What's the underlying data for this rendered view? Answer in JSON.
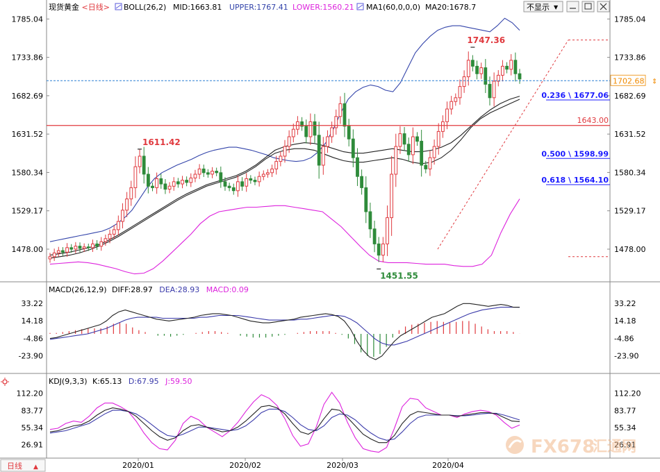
{
  "header": {
    "instrument": "现货黄金",
    "period": "<日线>",
    "boll": "BOLL(26,2)",
    "mid": "MID:1663.81",
    "upper": "UPPER:1767.41",
    "lower": "LOWER:1560.21",
    "ma": "MA1(60,0,0,0)",
    "ma20": "MA20:1678.7",
    "hide_button": "不显示",
    "hide_arrow": "▼"
  },
  "macd_header": {
    "title": "MACD(26,12,9)",
    "diff": "DIFF:28.97",
    "dea": "DEA:28.93",
    "macd": "MACD:0.09"
  },
  "kdj_header": {
    "title": "KDJ(9,3,3)",
    "k": "K:65.13",
    "d": "D:67.95",
    "j": "J:59.50"
  },
  "bottom": {
    "period_tab": "日线",
    "period_arrow": "▲"
  },
  "watermark": {
    "brand": "FX678",
    "cn": "汇通网"
  },
  "colors": {
    "up": "#e0393e",
    "down": "#2e8b3a",
    "boll_upper": "#3344aa",
    "boll_lower": "#dd22dd",
    "ma": "#222222",
    "resistance": "#e0393e",
    "current_price_line": "#2a7fd4",
    "fib_label": "#1a1aff",
    "dea": "#3a3aaa",
    "diff": "#222222"
  },
  "chart_data": [
    {
      "type": "candlestick",
      "name": "main",
      "x_labels": [
        "2020/01",
        "2020/02",
        "2020/03",
        "2020/04"
      ],
      "y_ticks": [
        1785.04,
        1733.86,
        1682.69,
        1631.52,
        1580.34,
        1529.17,
        1478.0
      ],
      "ylim": [
        1440,
        1790
      ],
      "current_price": 1702.68,
      "resistance": 1643.0,
      "resistance_label": "1643.00",
      "annotations": [
        {
          "text": "1611.42",
          "value": 1611.42,
          "color": "#e0393e"
        },
        {
          "text": "1747.36",
          "value": 1747.36,
          "color": "#e0393e"
        },
        {
          "text": "1451.55",
          "value": 1451.55,
          "color": "#2e8b3a"
        }
      ],
      "fib_levels": [
        {
          "label": "0.236 \\ 1677.06",
          "value": 1677.06
        },
        {
          "label": "0.500 \\ 1598.99",
          "value": 1598.99
        },
        {
          "label": "0.618 \\ 1564.10",
          "value": 1564.1
        }
      ],
      "closes": [
        1468,
        1473,
        1476,
        1474,
        1480,
        1478,
        1482,
        1479,
        1481,
        1480,
        1485,
        1482,
        1488,
        1492,
        1498,
        1504,
        1515,
        1530,
        1545,
        1560,
        1588,
        1602,
        1578,
        1562,
        1560,
        1572,
        1565,
        1558,
        1562,
        1568,
        1565,
        1570,
        1567,
        1573,
        1578,
        1585,
        1580,
        1578,
        1582,
        1580,
        1568,
        1562,
        1560,
        1556,
        1568,
        1562,
        1572,
        1570,
        1568,
        1575,
        1578,
        1580,
        1585,
        1595,
        1602,
        1615,
        1628,
        1638,
        1648,
        1642,
        1628,
        1648,
        1630,
        1590,
        1615,
        1628,
        1640,
        1655,
        1672,
        1642,
        1625,
        1600,
        1575,
        1560,
        1528,
        1505,
        1485,
        1470,
        1485,
        1520,
        1578,
        1615,
        1632,
        1618,
        1604,
        1628,
        1622,
        1590,
        1585,
        1600,
        1615,
        1635,
        1648,
        1665,
        1675,
        1680,
        1695,
        1708,
        1730,
        1722,
        1712,
        1720,
        1698,
        1680,
        1702,
        1710,
        1722,
        1718,
        1730,
        1712,
        1705
      ],
      "boll_upper": [
        1488,
        1490,
        1492,
        1494,
        1496,
        1498,
        1500,
        1502,
        1506,
        1512,
        1520,
        1530,
        1545,
        1560,
        1572,
        1580,
        1585,
        1590,
        1594,
        1598,
        1603,
        1607,
        1610,
        1612,
        1614,
        1614,
        1612,
        1610,
        1607,
        1604,
        1600,
        1598,
        1596,
        1595,
        1596,
        1600,
        1608,
        1620,
        1638,
        1660,
        1678,
        1688,
        1694,
        1697,
        1695,
        1690,
        1688,
        1700,
        1720,
        1740,
        1752,
        1762,
        1770,
        1774,
        1776,
        1776,
        1774,
        1772,
        1770,
        1768,
        1776,
        1786,
        1780,
        1770
      ],
      "boll_lower": [
        1458,
        1459,
        1460,
        1461,
        1460,
        1458,
        1455,
        1452,
        1448,
        1445,
        1446,
        1452,
        1462,
        1474,
        1486,
        1498,
        1512,
        1522,
        1528,
        1530,
        1532,
        1534,
        1534,
        1535,
        1536,
        1536,
        1534,
        1532,
        1530,
        1528,
        1518,
        1508,
        1495,
        1482,
        1470,
        1462,
        1460,
        1460,
        1460,
        1459,
        1458,
        1458,
        1458,
        1456,
        1455,
        1455,
        1458,
        1470,
        1500,
        1525,
        1545
      ],
      "ma_long": [
        1470,
        1472,
        1474,
        1477,
        1480,
        1484,
        1490,
        1497,
        1505,
        1513,
        1521,
        1529,
        1537,
        1545,
        1552,
        1558,
        1564,
        1568,
        1572,
        1576,
        1582,
        1590,
        1600,
        1610,
        1615,
        1618,
        1620,
        1619,
        1616,
        1612,
        1608,
        1606,
        1606,
        1608,
        1610,
        1612,
        1610,
        1608,
        1608,
        1610,
        1614,
        1620,
        1630,
        1642,
        1654,
        1664,
        1672,
        1678,
        1682
      ],
      "ma_short": [
        1466,
        1468,
        1470,
        1473,
        1477,
        1482,
        1488,
        1495,
        1503,
        1511,
        1519,
        1527,
        1535,
        1543,
        1550,
        1556,
        1562,
        1566,
        1570,
        1574,
        1580,
        1588,
        1598,
        1606,
        1610,
        1612,
        1612,
        1610,
        1605,
        1600,
        1596,
        1594,
        1594,
        1596,
        1598,
        1600,
        1598,
        1594,
        1592,
        1594,
        1600,
        1610,
        1624,
        1640,
        1652,
        1660,
        1666,
        1672,
        1678
      ]
    },
    {
      "type": "macd",
      "name": "MACD",
      "y_ticks": [
        33.22,
        14.18,
        -4.86,
        -23.9
      ],
      "ylim": [
        -40,
        40
      ],
      "diff": [
        -5,
        -4,
        -2,
        0,
        2,
        4,
        6,
        8,
        10,
        14,
        20,
        24,
        26,
        24,
        22,
        20,
        18,
        16,
        15,
        14,
        15,
        16,
        17,
        18,
        20,
        21,
        22,
        22,
        21,
        20,
        18,
        16,
        14,
        13,
        12,
        12,
        13,
        14,
        15,
        16,
        18,
        19,
        20,
        21,
        22,
        21,
        19,
        14,
        5,
        -8,
        -18,
        -25,
        -28,
        -24,
        -16,
        -8,
        -2,
        2,
        6,
        10,
        14,
        18,
        20,
        22,
        26,
        30,
        33,
        33,
        32,
        31,
        30,
        31,
        32,
        31,
        29,
        28.97
      ],
      "dea": [
        -6,
        -5,
        -4,
        -3,
        -2,
        -1,
        0,
        2,
        4,
        6,
        9,
        12,
        15,
        17,
        18,
        18,
        18,
        18,
        17,
        17,
        17,
        17,
        17,
        17,
        18,
        18,
        19,
        20,
        20,
        20,
        20,
        19,
        18,
        17,
        16,
        15,
        15,
        15,
        15,
        15,
        16,
        16,
        17,
        18,
        19,
        20,
        20,
        19,
        16,
        12,
        6,
        0,
        -6,
        -10,
        -12,
        -12,
        -10,
        -8,
        -5,
        -2,
        1,
        4,
        7,
        10,
        13,
        16,
        19,
        22,
        24,
        26,
        27,
        28,
        29,
        29,
        29,
        28.93
      ],
      "hist": [
        1,
        1,
        2,
        3,
        4,
        5,
        6,
        6,
        6,
        8,
        11,
        12,
        11,
        7,
        4,
        2,
        0,
        -2,
        -2,
        -3,
        -2,
        -1,
        0,
        1,
        2,
        3,
        3,
        2,
        1,
        0,
        -2,
        -3,
        -4,
        -4,
        -4,
        -3,
        -2,
        -1,
        0,
        1,
        2,
        3,
        3,
        3,
        3,
        1,
        -1,
        -5,
        -11,
        -20,
        -24,
        -25,
        -22,
        -14,
        -4,
        4,
        8,
        10,
        11,
        12,
        13,
        14,
        13,
        12,
        13,
        14,
        14,
        11,
        8,
        5,
        3,
        3,
        3,
        2,
        0.09
      ]
    },
    {
      "type": "kdj",
      "name": "KDJ",
      "y_ticks": [
        112.2,
        83.77,
        55.34,
        26.91
      ],
      "ylim": [
        10,
        120
      ],
      "k": [
        48,
        50,
        54,
        58,
        60,
        66,
        76,
        84,
        88,
        86,
        82,
        74,
        62,
        50,
        40,
        34,
        38,
        50,
        58,
        60,
        56,
        52,
        48,
        50,
        56,
        66,
        78,
        90,
        92,
        88,
        78,
        62,
        48,
        44,
        52,
        70,
        86,
        84,
        72,
        58,
        44,
        36,
        30,
        30,
        42,
        62,
        76,
        82,
        80,
        78,
        76,
        76,
        74,
        76,
        78,
        80,
        80,
        78,
        72,
        66,
        65.13
      ],
      "d": [
        46,
        48,
        50,
        54,
        58,
        62,
        70,
        78,
        84,
        84,
        82,
        78,
        70,
        60,
        50,
        42,
        40,
        44,
        50,
        56,
        56,
        54,
        52,
        50,
        52,
        58,
        68,
        80,
        86,
        86,
        82,
        72,
        60,
        52,
        50,
        58,
        72,
        78,
        76,
        68,
        56,
        46,
        38,
        34,
        36,
        48,
        62,
        72,
        76,
        76,
        76,
        76,
        75,
        75,
        76,
        78,
        79,
        79,
        76,
        72,
        67.95
      ],
      "j": [
        52,
        54,
        62,
        66,
        64,
        74,
        88,
        96,
        96,
        90,
        82,
        66,
        46,
        30,
        20,
        18,
        34,
        62,
        74,
        68,
        56,
        48,
        40,
        50,
        64,
        82,
        98,
        110,
        104,
        92,
        70,
        42,
        24,
        28,
        56,
        94,
        114,
        96,
        64,
        38,
        20,
        16,
        14,
        22,
        54,
        90,
        104,
        102,
        88,
        82,
        76,
        76,
        72,
        78,
        82,
        84,
        82,
        76,
        64,
        54,
        59.5
      ],
      "brand_name": "FX678"
    }
  ]
}
